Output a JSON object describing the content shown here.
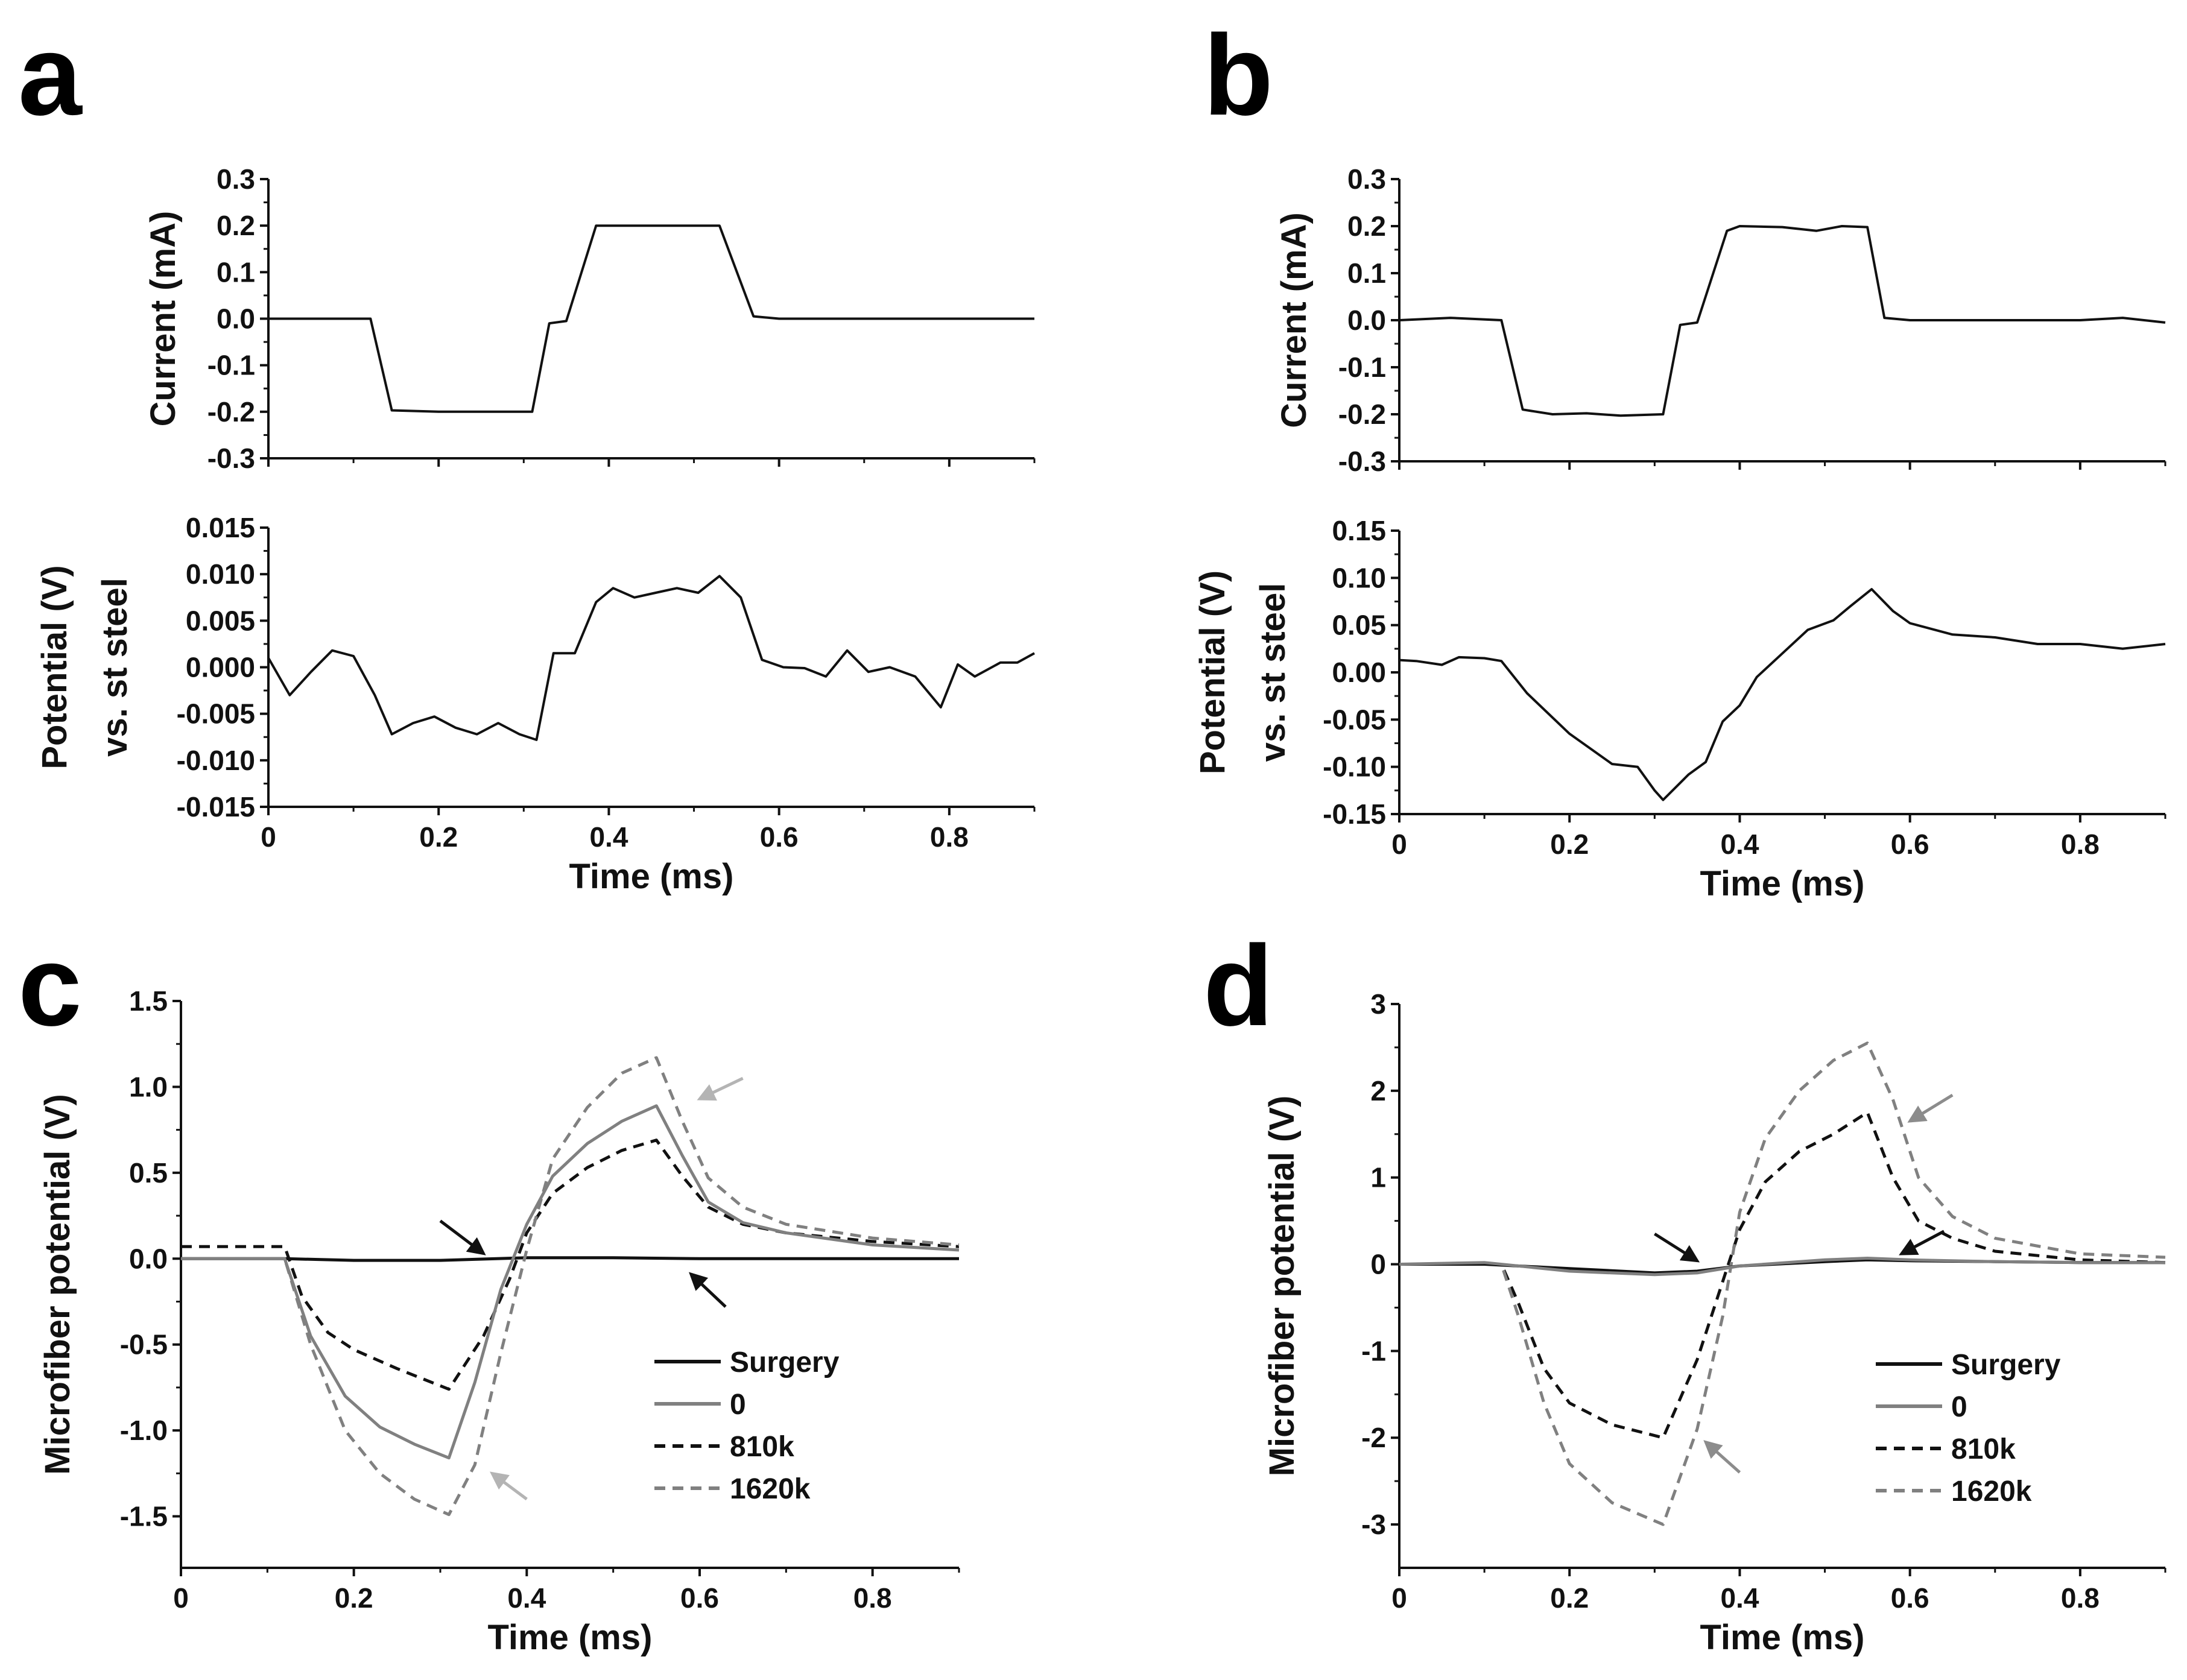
{
  "colors": {
    "black": "#111111",
    "gray": "#808080",
    "lightgray": "#b4b4b4",
    "midgray": "#8c8c8c"
  },
  "panels": [
    {
      "letter": "a"
    },
    {
      "letter": "b"
    },
    {
      "letter": "c"
    },
    {
      "letter": "d"
    }
  ],
  "chart_data": [
    {
      "id": "a_current",
      "type": "line",
      "panel": "a",
      "xlabel": "",
      "ylabel": "Current (mA)",
      "xlim": [
        0,
        0.9
      ],
      "ylim": [
        -0.3,
        0.3
      ],
      "xticks": [
        0,
        0.2,
        0.4,
        0.6,
        0.8
      ],
      "xtick_labels": [],
      "yticks": [
        -0.3,
        -0.2,
        -0.1,
        0.0,
        0.1,
        0.2,
        0.3
      ],
      "ytick_labels": [
        "-0.3",
        "-0.2",
        "-0.1",
        "0.0",
        "0.1",
        "0.2",
        "0.3"
      ],
      "series": [
        {
          "name": "current",
          "color": "#111111",
          "dash": false,
          "width": 4,
          "x": [
            0,
            0.12,
            0.145,
            0.2,
            0.26,
            0.31,
            0.33,
            0.35,
            0.385,
            0.45,
            0.53,
            0.57,
            0.6,
            0.7,
            0.8,
            0.9
          ],
          "y": [
            0.0,
            0.0,
            -0.197,
            -0.2,
            -0.2,
            -0.2,
            -0.01,
            -0.005,
            0.2,
            0.2,
            0.2,
            0.005,
            0.0,
            0.0,
            0.0,
            0.0
          ]
        }
      ]
    },
    {
      "id": "a_potential",
      "type": "line",
      "panel": "a",
      "xlabel": "Time (ms)",
      "ylabel": "Potential (V)",
      "ylabel2": "vs. st steel",
      "xlim": [
        0,
        0.9
      ],
      "ylim": [
        -0.015,
        0.015
      ],
      "xticks": [
        0,
        0.2,
        0.4,
        0.6,
        0.8
      ],
      "xtick_labels": [
        "0",
        "0.2",
        "0.4",
        "0.6",
        "0.8"
      ],
      "yticks": [
        -0.015,
        -0.01,
        -0.005,
        0.0,
        0.005,
        0.01,
        0.015
      ],
      "ytick_labels": [
        "-0.015",
        "-0.010",
        "-0.005",
        "0.000",
        "0.005",
        "0.010",
        "0.015"
      ],
      "series": [
        {
          "name": "potential",
          "color": "#111111",
          "dash": false,
          "width": 4,
          "x": [
            0,
            0.025,
            0.05,
            0.075,
            0.1,
            0.125,
            0.145,
            0.17,
            0.195,
            0.22,
            0.245,
            0.27,
            0.295,
            0.315,
            0.335,
            0.36,
            0.385,
            0.405,
            0.43,
            0.455,
            0.48,
            0.505,
            0.53,
            0.555,
            0.58,
            0.605,
            0.63,
            0.655,
            0.68,
            0.705,
            0.73,
            0.76,
            0.79,
            0.81,
            0.83,
            0.86,
            0.88,
            0.9
          ],
          "y": [
            0.001,
            -0.003,
            -0.0005,
            0.0018,
            0.0012,
            -0.003,
            -0.0072,
            -0.006,
            -0.0053,
            -0.0065,
            -0.0072,
            -0.006,
            -0.0072,
            -0.0078,
            0.0015,
            0.0015,
            0.007,
            0.0085,
            0.0075,
            0.008,
            0.0085,
            0.008,
            0.0098,
            0.0075,
            0.0008,
            0.0,
            -0.0001,
            -0.001,
            0.0018,
            -0.0005,
            0.0,
            -0.001,
            -0.0043,
            0.0003,
            -0.001,
            0.0005,
            0.0005,
            0.0015
          ]
        }
      ]
    },
    {
      "id": "b_current",
      "type": "line",
      "panel": "b",
      "xlabel": "",
      "ylabel": "Current (mA)",
      "xlim": [
        0,
        0.9
      ],
      "ylim": [
        -0.3,
        0.3
      ],
      "xticks": [
        0,
        0.2,
        0.4,
        0.6,
        0.8
      ],
      "xtick_labels": [],
      "yticks": [
        -0.3,
        -0.2,
        -0.1,
        0.0,
        0.1,
        0.2,
        0.3
      ],
      "ytick_labels": [
        "-0.3",
        "-0.2",
        "-0.1",
        "0.0",
        "0.1",
        "0.2",
        "0.3"
      ],
      "series": [
        {
          "name": "current",
          "color": "#111111",
          "dash": false,
          "width": 4,
          "x": [
            0,
            0.06,
            0.12,
            0.145,
            0.18,
            0.22,
            0.26,
            0.31,
            0.33,
            0.35,
            0.385,
            0.4,
            0.45,
            0.49,
            0.52,
            0.55,
            0.57,
            0.6,
            0.7,
            0.8,
            0.85,
            0.9
          ],
          "y": [
            0.0,
            0.005,
            0.0,
            -0.19,
            -0.2,
            -0.198,
            -0.203,
            -0.2,
            -0.01,
            -0.005,
            0.19,
            0.2,
            0.198,
            0.19,
            0.2,
            0.198,
            0.005,
            0.0,
            0.0,
            0.0,
            0.005,
            -0.005
          ]
        }
      ]
    },
    {
      "id": "b_potential",
      "type": "line",
      "panel": "b",
      "xlabel": "Time (ms)",
      "ylabel": "Potential (V)",
      "ylabel2": "vs. st steel",
      "xlim": [
        0,
        0.9
      ],
      "ylim": [
        -0.15,
        0.15
      ],
      "xticks": [
        0,
        0.2,
        0.4,
        0.6,
        0.8
      ],
      "xtick_labels": [
        "0",
        "0.2",
        "0.4",
        "0.6",
        "0.8"
      ],
      "yticks": [
        -0.15,
        -0.1,
        -0.05,
        0.0,
        0.05,
        0.1,
        0.15
      ],
      "ytick_labels": [
        "-0.15",
        "-0.10",
        "-0.05",
        "0.00",
        "0.05",
        "0.10",
        "0.15"
      ],
      "series": [
        {
          "name": "potential",
          "color": "#111111",
          "dash": false,
          "width": 4,
          "x": [
            0,
            0.02,
            0.05,
            0.07,
            0.1,
            0.12,
            0.15,
            0.2,
            0.25,
            0.28,
            0.3,
            0.31,
            0.34,
            0.36,
            0.38,
            0.4,
            0.42,
            0.45,
            0.48,
            0.51,
            0.53,
            0.555,
            0.58,
            0.6,
            0.65,
            0.7,
            0.75,
            0.8,
            0.85,
            0.9
          ],
          "y": [
            0.013,
            0.012,
            0.008,
            0.016,
            0.015,
            0.012,
            -0.022,
            -0.065,
            -0.097,
            -0.1,
            -0.125,
            -0.135,
            -0.108,
            -0.095,
            -0.052,
            -0.035,
            -0.005,
            0.02,
            0.045,
            0.055,
            0.07,
            0.088,
            0.065,
            0.052,
            0.04,
            0.037,
            0.03,
            0.03,
            0.025,
            0.03
          ]
        }
      ]
    },
    {
      "id": "c_microfiber",
      "type": "line",
      "panel": "c",
      "xlabel": "Time (ms)",
      "ylabel": "Microfiber potential (V)",
      "xlim": [
        0,
        0.9
      ],
      "ylim": [
        -1.8,
        1.5
      ],
      "xticks": [
        0,
        0.2,
        0.4,
        0.6,
        0.8
      ],
      "xtick_labels": [
        "0",
        "0.2",
        "0.4",
        "0.6",
        "0.8"
      ],
      "yticks": [
        -1.5,
        -1.0,
        -0.5,
        0.0,
        0.5,
        1.0,
        1.5
      ],
      "ytick_labels": [
        "-1.5",
        "-1.0",
        "-0.5",
        "0.0",
        "0.5",
        "1.0",
        "1.5"
      ],
      "legend": [
        {
          "label": "Surgery",
          "color": "#111111",
          "dash": false
        },
        {
          "label": "0",
          "color": "#808080",
          "dash": false
        },
        {
          "label": "810k",
          "color": "#111111",
          "dash": true
        },
        {
          "label": "1620k",
          "color": "#808080",
          "dash": true
        }
      ],
      "series": [
        {
          "name": "Surgery",
          "color": "#111111",
          "dash": false,
          "width": 5,
          "x": [
            0,
            0.12,
            0.2,
            0.3,
            0.4,
            0.5,
            0.6,
            0.7,
            0.8,
            0.9
          ],
          "y": [
            0.0,
            0.0,
            -0.01,
            -0.01,
            0.005,
            0.005,
            0.0,
            0.0,
            0.0,
            0.0
          ]
        },
        {
          "name": "810k",
          "color": "#111111",
          "dash": true,
          "width": 5,
          "x": [
            0,
            0.12,
            0.14,
            0.17,
            0.2,
            0.25,
            0.31,
            0.35,
            0.38,
            0.4,
            0.43,
            0.47,
            0.51,
            0.55,
            0.58,
            0.61,
            0.65,
            0.7,
            0.8,
            0.9
          ],
          "y": [
            0.07,
            0.07,
            -0.22,
            -0.43,
            -0.53,
            -0.64,
            -0.76,
            -0.45,
            -0.12,
            0.15,
            0.38,
            0.53,
            0.63,
            0.69,
            0.48,
            0.3,
            0.2,
            0.15,
            0.1,
            0.07
          ]
        },
        {
          "name": "0",
          "color": "#808080",
          "dash": false,
          "width": 5,
          "x": [
            0,
            0.12,
            0.15,
            0.19,
            0.23,
            0.27,
            0.31,
            0.34,
            0.37,
            0.4,
            0.43,
            0.47,
            0.51,
            0.55,
            0.58,
            0.61,
            0.65,
            0.7,
            0.8,
            0.9
          ],
          "y": [
            0.0,
            0.0,
            -0.45,
            -0.8,
            -0.98,
            -1.08,
            -1.16,
            -0.72,
            -0.18,
            0.2,
            0.48,
            0.67,
            0.8,
            0.89,
            0.6,
            0.33,
            0.21,
            0.15,
            0.08,
            0.05
          ]
        },
        {
          "name": "1620k",
          "color": "#808080",
          "dash": true,
          "width": 5,
          "x": [
            0,
            0.12,
            0.15,
            0.19,
            0.23,
            0.27,
            0.31,
            0.34,
            0.37,
            0.4,
            0.43,
            0.47,
            0.51,
            0.55,
            0.58,
            0.61,
            0.65,
            0.7,
            0.8,
            0.9
          ],
          "y": [
            0.0,
            0.0,
            -0.5,
            -1.0,
            -1.25,
            -1.4,
            -1.49,
            -1.2,
            -0.55,
            0.05,
            0.58,
            0.88,
            1.08,
            1.17,
            0.8,
            0.47,
            0.3,
            0.2,
            0.12,
            0.08
          ]
        }
      ],
      "arrows": [
        {
          "from": [
            0.3,
            0.22
          ],
          "to": [
            0.35,
            0.03
          ],
          "color": "#111111"
        },
        {
          "from": [
            0.63,
            -0.28
          ],
          "to": [
            0.59,
            -0.09
          ],
          "color": "#111111"
        },
        {
          "from": [
            0.65,
            1.05
          ],
          "to": [
            0.6,
            0.93
          ],
          "color": "#b4b4b4"
        },
        {
          "from": [
            0.4,
            -1.4
          ],
          "to": [
            0.36,
            -1.25
          ],
          "color": "#b4b4b4"
        }
      ]
    },
    {
      "id": "d_microfiber",
      "type": "line",
      "panel": "d",
      "xlabel": "Time (ms)",
      "ylabel": "Microfiber potential (V)",
      "xlim": [
        0,
        0.9
      ],
      "ylim": [
        -3.5,
        3
      ],
      "xticks": [
        0,
        0.2,
        0.4,
        0.6,
        0.8
      ],
      "xtick_labels": [
        "0",
        "0.2",
        "0.4",
        "0.6",
        "0.8"
      ],
      "yticks": [
        -3,
        -2,
        -1,
        0,
        1,
        2,
        3
      ],
      "ytick_labels": [
        "-3",
        "-2",
        "-1",
        "0",
        "1",
        "2",
        "3"
      ],
      "legend": [
        {
          "label": "Surgery",
          "color": "#111111",
          "dash": false
        },
        {
          "label": "0",
          "color": "#808080",
          "dash": false
        },
        {
          "label": "810k",
          "color": "#111111",
          "dash": true
        },
        {
          "label": "1620k",
          "color": "#808080",
          "dash": true
        }
      ],
      "series": [
        {
          "name": "810k",
          "color": "#111111",
          "dash": true,
          "width": 5,
          "x": [
            0,
            0.12,
            0.14,
            0.17,
            0.2,
            0.25,
            0.31,
            0.35,
            0.38,
            0.4,
            0.43,
            0.47,
            0.51,
            0.55,
            0.58,
            0.61,
            0.65,
            0.7,
            0.8,
            0.9
          ],
          "y": [
            0.0,
            0.0,
            -0.45,
            -1.2,
            -1.6,
            -1.85,
            -2.0,
            -1.1,
            -0.2,
            0.4,
            0.95,
            1.3,
            1.5,
            1.75,
            1.0,
            0.5,
            0.3,
            0.15,
            0.05,
            0.02
          ]
        },
        {
          "name": "1620k",
          "color": "#808080",
          "dash": true,
          "width": 5,
          "x": [
            0,
            0.12,
            0.14,
            0.17,
            0.2,
            0.25,
            0.31,
            0.35,
            0.38,
            0.4,
            0.43,
            0.47,
            0.51,
            0.55,
            0.58,
            0.61,
            0.65,
            0.7,
            0.8,
            0.9
          ],
          "y": [
            0.0,
            0.0,
            -0.6,
            -1.6,
            -2.3,
            -2.75,
            -3.0,
            -1.9,
            -0.6,
            0.6,
            1.45,
            2.0,
            2.35,
            2.55,
            1.9,
            1.0,
            0.55,
            0.3,
            0.12,
            0.08
          ]
        },
        {
          "name": "Surgery",
          "color": "#111111",
          "dash": false,
          "width": 5,
          "x": [
            0,
            0.1,
            0.2,
            0.3,
            0.35,
            0.4,
            0.5,
            0.55,
            0.6,
            0.7,
            0.8,
            0.9
          ],
          "y": [
            0.0,
            0.0,
            -0.05,
            -0.1,
            -0.08,
            -0.02,
            0.03,
            0.05,
            0.04,
            0.03,
            0.02,
            0.02
          ]
        },
        {
          "name": "0",
          "color": "#808080",
          "dash": false,
          "width": 5,
          "x": [
            0,
            0.1,
            0.2,
            0.3,
            0.35,
            0.4,
            0.5,
            0.55,
            0.6,
            0.7,
            0.8,
            0.9
          ],
          "y": [
            0.0,
            0.02,
            -0.08,
            -0.12,
            -0.1,
            -0.02,
            0.05,
            0.07,
            0.05,
            0.03,
            0.02,
            0.02
          ]
        }
      ],
      "arrows": [
        {
          "from": [
            0.3,
            0.35
          ],
          "to": [
            0.35,
            0.04
          ],
          "color": "#111111"
        },
        {
          "from": [
            0.64,
            0.38
          ],
          "to": [
            0.59,
            0.12
          ],
          "color": "#111111"
        },
        {
          "from": [
            0.65,
            1.95
          ],
          "to": [
            0.6,
            1.65
          ],
          "color": "#8c8c8c"
        },
        {
          "from": [
            0.4,
            -2.4
          ],
          "to": [
            0.36,
            -2.05
          ],
          "color": "#8c8c8c"
        }
      ]
    }
  ]
}
